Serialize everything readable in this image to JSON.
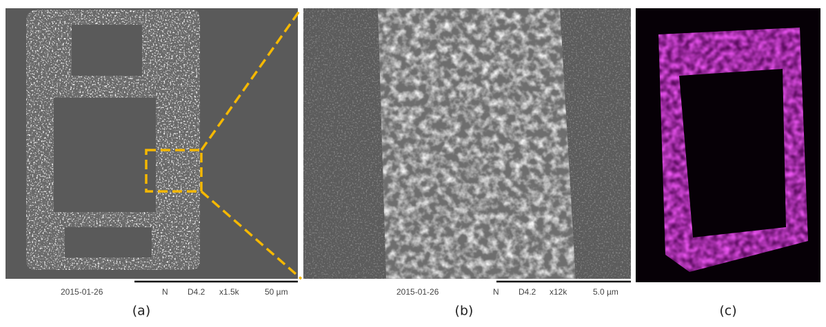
{
  "panel_a": {
    "date": "2015-01-26",
    "detector": "N",
    "mode": "D4.2",
    "magnification": "x1.5k",
    "scale_bar": "50 µm",
    "label": "(a)"
  },
  "panel_b": {
    "date": "2015-01-26",
    "detector": "N",
    "mode": "D4.2",
    "magnification": "x12k",
    "scale_bar": "5.0 µm",
    "label": "(b)"
  },
  "panel_c": {
    "label": "(c)"
  }
}
